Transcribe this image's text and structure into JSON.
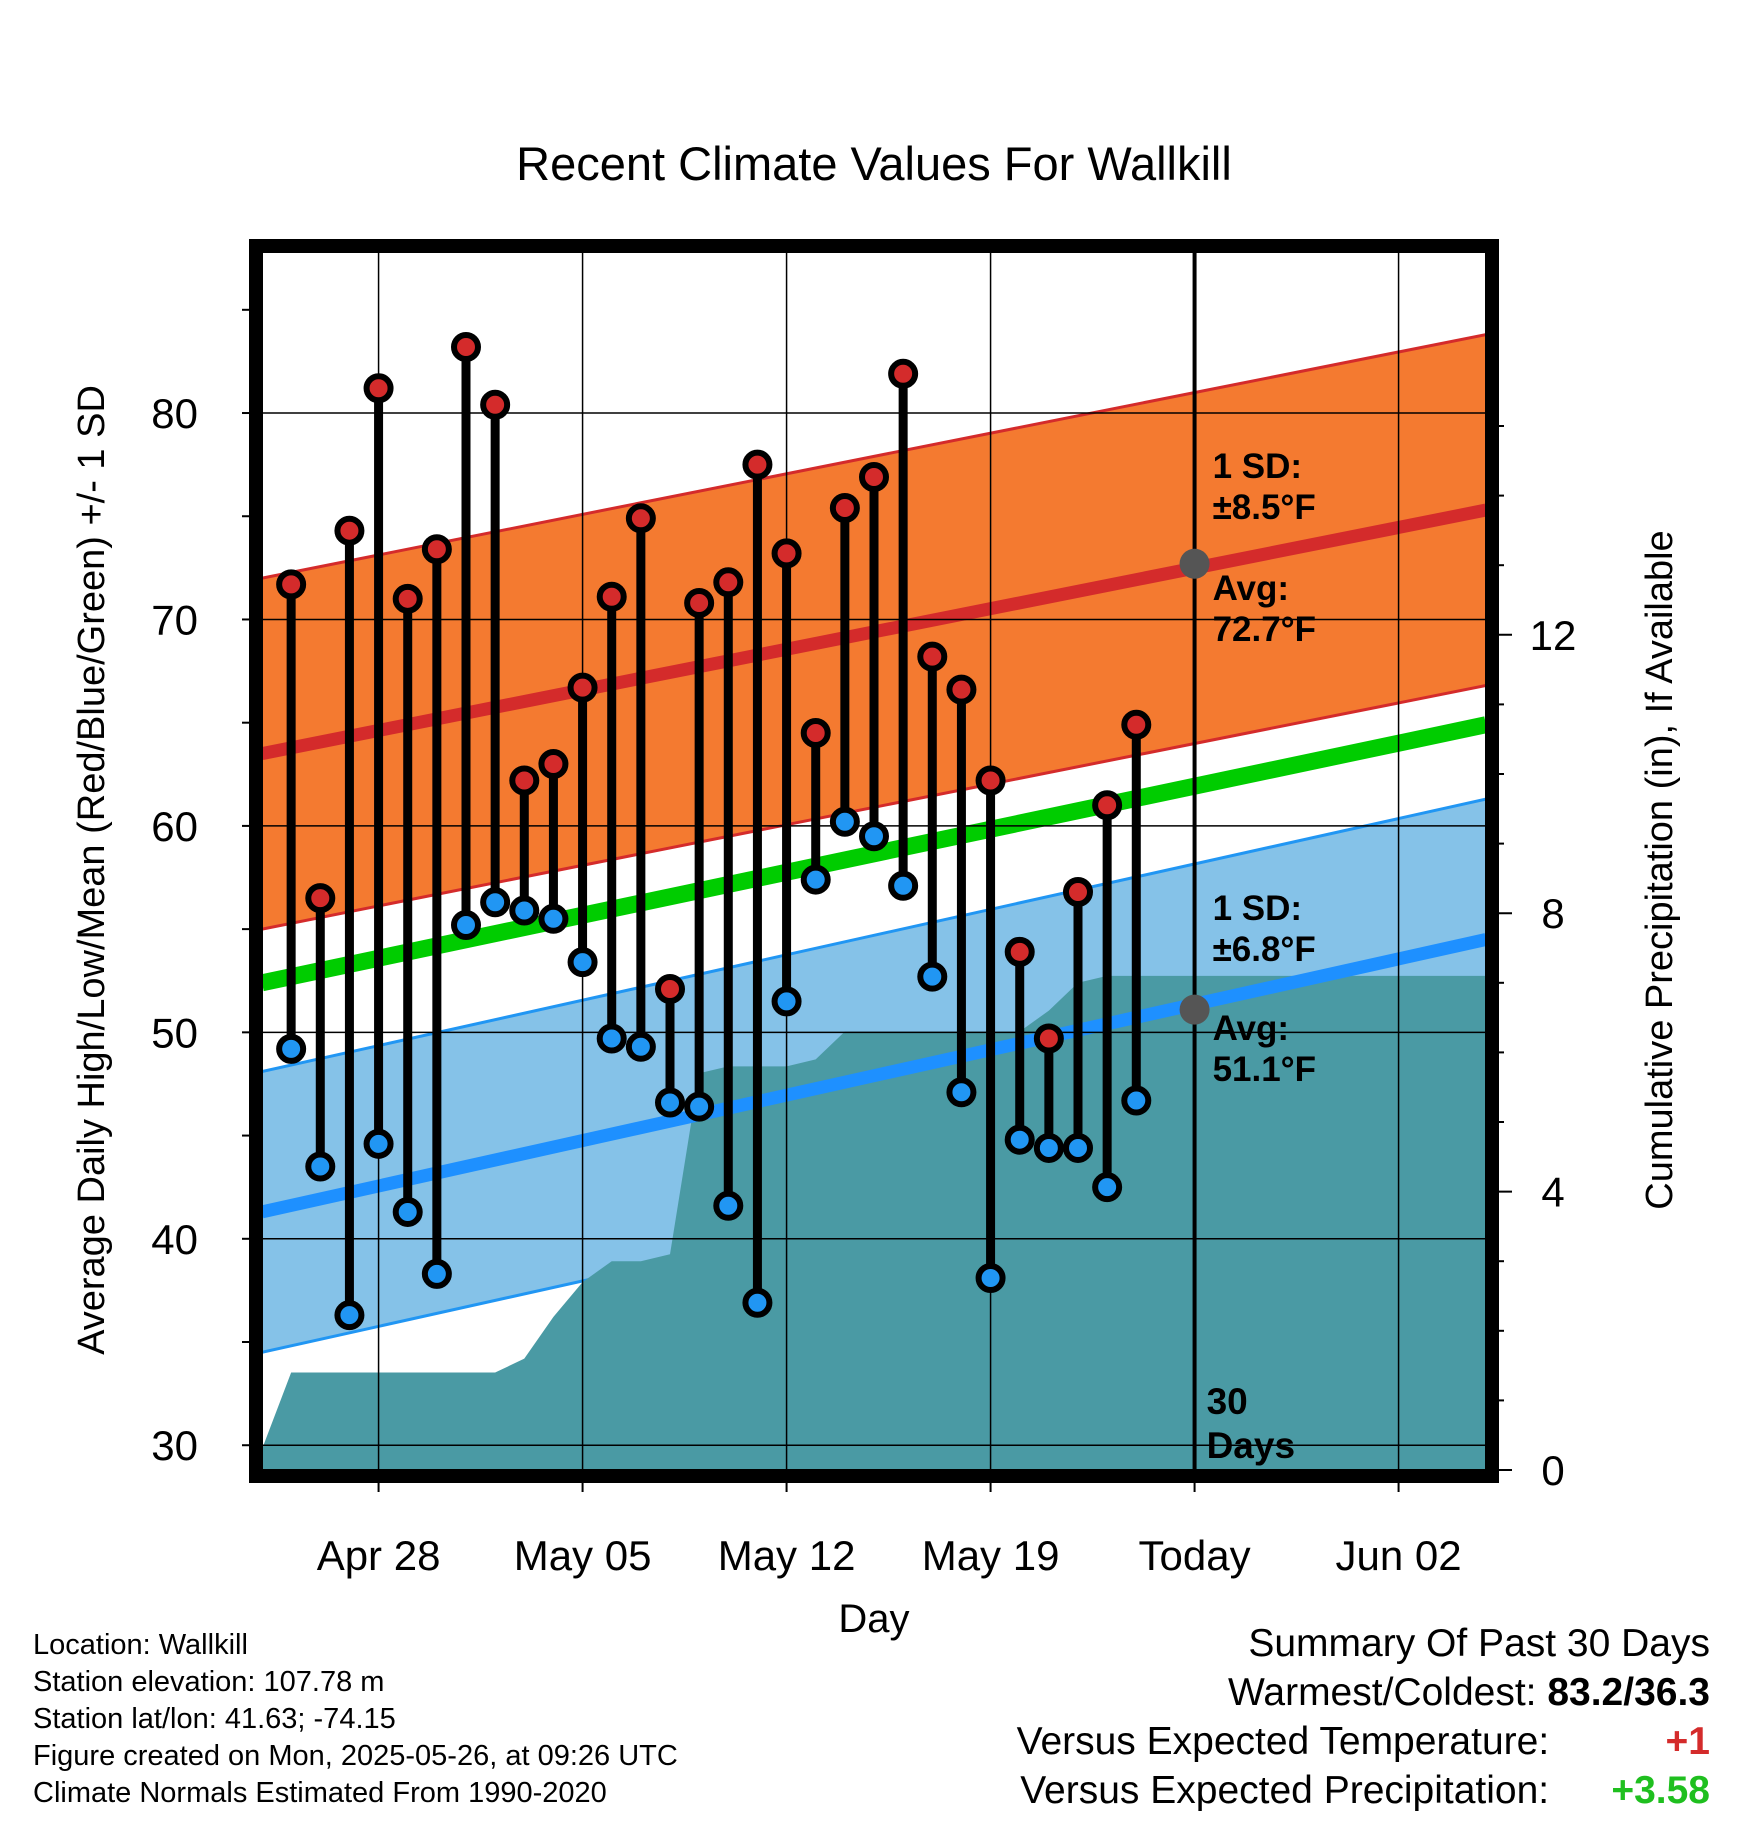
{
  "chart_data": {
    "type": "line",
    "title": "Recent Climate Values For Wallkill",
    "xlabel": "Day",
    "ylabel_left": "Average Daily High/Low/Mean (Red/Blue/Green) +/- 1 SD",
    "ylabel_right": "Cumulative Precipitation (in), If Available",
    "x_range": [
      "2025-04-24",
      "2025-06-05"
    ],
    "x_ticks": [
      {
        "date": "2025-04-28",
        "label": "Apr 28"
      },
      {
        "date": "2025-05-05",
        "label": "May 05"
      },
      {
        "date": "2025-05-12",
        "label": "May 12"
      },
      {
        "date": "2025-05-19",
        "label": "May 19"
      },
      {
        "date": "2025-05-26",
        "label": "Today"
      },
      {
        "date": "2025-06-02",
        "label": "Jun 02"
      }
    ],
    "y_left": {
      "range": [
        28.8,
        87.8
      ],
      "ticks": [
        30,
        40,
        50,
        60,
        70,
        80
      ]
    },
    "y_right": {
      "range": [
        0,
        17.5
      ],
      "ticks": [
        0,
        4,
        8,
        12
      ]
    },
    "grid": true,
    "today": "2025-05-26",
    "today_label": "30\nDays",
    "normals": {
      "high_avg": {
        "start": 63.5,
        "end": 75.3
      },
      "high_sd": 8.5,
      "low_avg": {
        "start": 41.3,
        "end": 54.5
      },
      "low_sd": 6.8,
      "mean": {
        "start": 52.4,
        "end": 64.9
      }
    },
    "annotations": {
      "high_sd": "1 SD:\n±8.5°F",
      "high_avg": "Avg:\n72.7°F",
      "low_sd": "1 SD:\n±6.8°F",
      "low_avg": "Avg:\n51.1°F",
      "today_high_avg": 72.7,
      "today_low_avg": 51.1
    },
    "series": [
      {
        "name": "High",
        "color": "#d42b2b",
        "x": [
          "2025-04-25",
          "2025-04-26",
          "2025-04-27",
          "2025-04-28",
          "2025-04-29",
          "2025-04-30",
          "2025-05-01",
          "2025-05-02",
          "2025-05-03",
          "2025-05-04",
          "2025-05-05",
          "2025-05-06",
          "2025-05-07",
          "2025-05-08",
          "2025-05-09",
          "2025-05-10",
          "2025-05-11",
          "2025-05-12",
          "2025-05-13",
          "2025-05-14",
          "2025-05-15",
          "2025-05-16",
          "2025-05-17",
          "2025-05-18",
          "2025-05-19",
          "2025-05-20",
          "2025-05-21",
          "2025-05-22",
          "2025-05-23",
          "2025-05-24",
          "2025-05-25"
        ],
        "values": [
          71.7,
          56.5,
          74.3,
          81.2,
          71.0,
          73.4,
          83.2,
          80.4,
          62.2,
          63.0,
          66.7,
          71.1,
          74.9,
          52.1,
          70.8,
          71.8,
          77.5,
          73.2,
          64.5,
          75.4,
          76.9,
          81.9,
          68.2,
          66.6,
          62.2,
          53.9,
          49.7,
          56.8,
          61.0,
          64.9,
          null
        ]
      },
      {
        "name": "Low",
        "color": "#2196f3",
        "x": [
          "2025-04-25",
          "2025-04-26",
          "2025-04-27",
          "2025-04-28",
          "2025-04-29",
          "2025-04-30",
          "2025-05-01",
          "2025-05-02",
          "2025-05-03",
          "2025-05-04",
          "2025-05-05",
          "2025-05-06",
          "2025-05-07",
          "2025-05-08",
          "2025-05-09",
          "2025-05-10",
          "2025-05-11",
          "2025-05-12",
          "2025-05-13",
          "2025-05-14",
          "2025-05-15",
          "2025-05-16",
          "2025-05-17",
          "2025-05-18",
          "2025-05-19",
          "2025-05-20",
          "2025-05-21",
          "2025-05-22",
          "2025-05-23",
          "2025-05-24",
          "2025-05-25"
        ],
        "values": [
          49.2,
          43.5,
          36.3,
          44.6,
          41.3,
          38.3,
          55.2,
          56.3,
          55.9,
          55.5,
          53.4,
          49.7,
          49.3,
          46.6,
          46.4,
          41.6,
          36.9,
          51.5,
          57.4,
          60.2,
          59.5,
          57.1,
          52.7,
          47.1,
          38.1,
          44.8,
          44.4,
          44.4,
          42.5,
          46.7,
          null
        ]
      }
    ],
    "precip": {
      "name": "Cumulative Precipitation",
      "color": "#4a9aa4",
      "x": [
        "2025-04-24",
        "2025-04-25",
        "2025-04-26",
        "2025-04-27",
        "2025-04-28",
        "2025-04-29",
        "2025-04-30",
        "2025-05-01",
        "2025-05-02",
        "2025-05-03",
        "2025-05-04",
        "2025-05-05",
        "2025-05-06",
        "2025-05-07",
        "2025-05-08",
        "2025-05-09",
        "2025-05-10",
        "2025-05-11",
        "2025-05-12",
        "2025-05-13",
        "2025-05-14",
        "2025-05-15",
        "2025-05-16",
        "2025-05-17",
        "2025-05-18",
        "2025-05-19",
        "2025-05-20",
        "2025-05-21",
        "2025-05-22",
        "2025-05-23",
        "2025-05-24",
        "2025-05-25",
        "2025-06-05"
      ],
      "values": [
        0.3,
        1.4,
        1.4,
        1.4,
        1.4,
        1.4,
        1.4,
        1.4,
        1.4,
        1.6,
        2.2,
        2.7,
        3.0,
        3.0,
        3.1,
        5.7,
        5.8,
        5.8,
        5.8,
        5.9,
        6.3,
        6.3,
        6.3,
        6.3,
        6.3,
        6.3,
        6.3,
        6.6,
        7.0,
        7.1,
        7.1,
        7.1,
        7.1
      ]
    }
  },
  "footer": {
    "location": "Location: Wallkill",
    "elevation": "Station elevation: 107.78 m",
    "latlon": "Station lat/lon: 41.63; -74.15",
    "created": "Figure created on Mon, 2025-05-26, at 09:26 UTC",
    "normals": "Climate Normals Estimated From 1990-2020"
  },
  "summary": {
    "title": "Summary Of Past 30 Days",
    "warm_cold_label": "Warmest/Coldest:",
    "warm_cold_value": "83.2/36.3",
    "temp_label": "Versus Expected Temperature:",
    "temp_value": "+1",
    "temp_color": "#d42b2b",
    "precip_label": "Versus Expected Precipitation:",
    "precip_value": "+3.58",
    "precip_color": "#1fbf1f"
  }
}
